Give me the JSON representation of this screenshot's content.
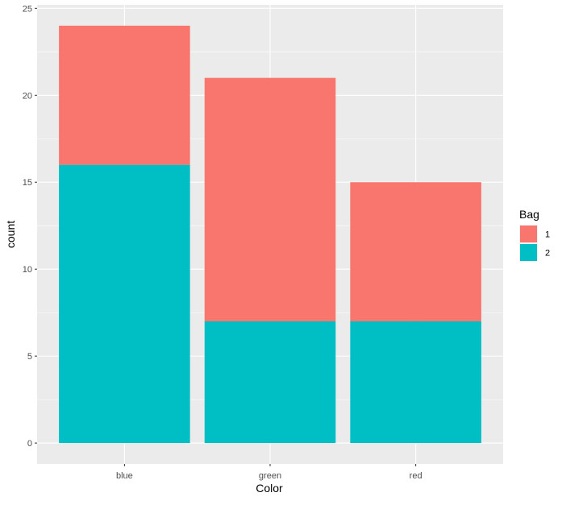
{
  "chart_data": {
    "type": "bar",
    "stacked": true,
    "categories": [
      "blue",
      "green",
      "red"
    ],
    "series": [
      {
        "name": "1",
        "values": [
          8,
          14,
          8
        ],
        "color": "#F8766D"
      },
      {
        "name": "2",
        "values": [
          16,
          7,
          7
        ],
        "color": "#00BFC4"
      }
    ],
    "stack_order_bottom_to_top": [
      "2",
      "1"
    ],
    "xlabel": "Color",
    "ylabel": "count",
    "ylim": [
      -1.2,
      25.2
    ],
    "yticks": [
      0,
      5,
      10,
      15,
      20,
      25
    ],
    "grid": true,
    "panel_background": "#EBEBEB",
    "grid_color": "#FFFFFF",
    "legend": {
      "title": "Bag",
      "position": "right"
    }
  }
}
